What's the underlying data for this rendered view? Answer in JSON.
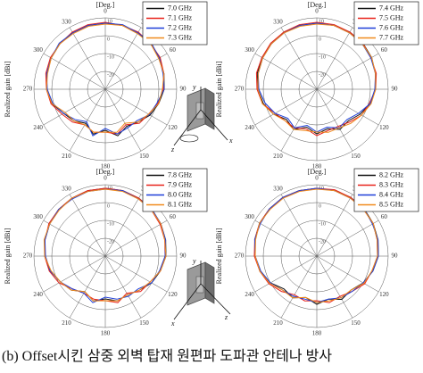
{
  "chart_data": [
    {
      "type": "polar",
      "theta_label": "[Deg.]",
      "r_label": "Realized gain [dBi]",
      "theta": [
        0,
        15,
        30,
        45,
        60,
        75,
        90,
        105,
        120,
        135,
        150,
        165,
        180,
        195,
        210,
        225,
        240,
        255,
        270,
        285,
        300,
        315,
        330,
        345
      ],
      "thetaticks": [
        0,
        30,
        60,
        90,
        120,
        150,
        180,
        210,
        240,
        270,
        300,
        330
      ],
      "rlim": [
        -30,
        10
      ],
      "rticks": [
        -20,
        -10,
        0,
        10
      ],
      "series": [
        {
          "name": "7.0 GHz",
          "color": "#111111",
          "values": [
            7,
            7,
            6.5,
            6,
            5,
            4,
            3,
            1,
            -1,
            -4,
            -6,
            -3,
            -7,
            -4,
            -8,
            -5,
            -3,
            1,
            3,
            4,
            5,
            6,
            6.5,
            7
          ]
        },
        {
          "name": "7.1 GHz",
          "color": "#e8231c",
          "values": [
            7.5,
            7,
            7,
            6,
            5.5,
            4,
            2.5,
            0.5,
            -2,
            -3,
            -7,
            -4,
            -6,
            -5,
            -7,
            -4,
            -2,
            1.5,
            3,
            4.5,
            5.5,
            6,
            7,
            7.5
          ]
        },
        {
          "name": "7.2 GHz",
          "color": "#1f3fd8",
          "values": [
            7,
            7.5,
            6.5,
            6.5,
            5,
            3.5,
            3,
            0,
            -1.5,
            -5,
            -5,
            -4,
            -8,
            -3,
            -9,
            -6,
            -3,
            0.5,
            2.5,
            4,
            5,
            6.5,
            6.5,
            7
          ]
        },
        {
          "name": "7.3 GHz",
          "color": "#f08a1c",
          "values": [
            6.5,
            7,
            6,
            6,
            4.5,
            4,
            2,
            1,
            -2,
            -4,
            -8,
            -5,
            -6,
            -5,
            -7,
            -5,
            -4,
            1,
            3,
            3.5,
            5,
            6,
            6,
            6.5
          ]
        }
      ]
    },
    {
      "type": "polar",
      "theta_label": "[Deg.]",
      "r_label": "Realized gain [dBi]",
      "theta": [
        0,
        15,
        30,
        45,
        60,
        75,
        90,
        105,
        120,
        135,
        150,
        165,
        180,
        195,
        210,
        225,
        240,
        255,
        270,
        285,
        300,
        315,
        330,
        345
      ],
      "thetaticks": [
        0,
        30,
        60,
        90,
        120,
        150,
        180,
        210,
        240,
        270,
        300,
        330
      ],
      "rlim": [
        -30,
        10
      ],
      "rticks": [
        -20,
        -10,
        0,
        10
      ],
      "series": [
        {
          "name": "7.4 GHz",
          "color": "#111111",
          "values": [
            7,
            7,
            7,
            6.5,
            5.5,
            4,
            3,
            1,
            -2,
            -5,
            -4,
            -7,
            -5,
            -8,
            -4,
            -6,
            -2,
            1,
            3,
            4.5,
            5.5,
            6,
            7,
            7
          ]
        },
        {
          "name": "7.5 GHz",
          "color": "#e8231c",
          "values": [
            7.5,
            7.5,
            7,
            6.5,
            5,
            4.5,
            3,
            0.5,
            -1,
            -4,
            -6,
            -6,
            -4,
            -7,
            -5,
            -5,
            -3,
            1.5,
            3.5,
            5,
            5.5,
            6.5,
            7,
            7.5
          ]
        },
        {
          "name": "7.6 GHz",
          "color": "#1f3fd8",
          "values": [
            7,
            7,
            6.5,
            6,
            5,
            4,
            2.5,
            1,
            -3,
            -6,
            -5,
            -8,
            -6,
            -9,
            -5,
            -7,
            -3,
            0,
            2.5,
            4,
            5,
            6,
            6.5,
            7
          ]
        },
        {
          "name": "7.7 GHz",
          "color": "#f08a1c",
          "values": [
            6.5,
            7,
            6.5,
            6,
            5.5,
            4,
            3,
            1.5,
            -1,
            -3,
            -5,
            -5,
            -6,
            -6,
            -4,
            -5,
            -2,
            1.5,
            3,
            4,
            5,
            6,
            6.5,
            6.5
          ]
        }
      ]
    },
    {
      "type": "polar",
      "theta_label": "[Deg.]",
      "r_label": "Realized gain [dBi]",
      "theta": [
        0,
        15,
        30,
        45,
        60,
        75,
        90,
        105,
        120,
        135,
        150,
        165,
        180,
        195,
        210,
        225,
        240,
        255,
        270,
        285,
        300,
        315,
        330,
        345
      ],
      "thetaticks": [
        0,
        30,
        60,
        90,
        120,
        150,
        180,
        210,
        240,
        270,
        300,
        330
      ],
      "rlim": [
        -30,
        10
      ],
      "rticks": [
        -20,
        -10,
        0,
        10
      ],
      "series": [
        {
          "name": "7.8 GHz",
          "color": "#111111",
          "values": [
            8,
            8,
            7.5,
            7,
            6,
            5,
            4,
            2,
            0,
            -3,
            -5,
            -4,
            -6,
            -4,
            -7,
            -3,
            -1,
            2,
            4,
            5,
            6,
            7,
            7.5,
            8
          ]
        },
        {
          "name": "7.9 GHz",
          "color": "#e8231c",
          "values": [
            8,
            8,
            7.5,
            6.5,
            5.5,
            4.5,
            3.5,
            2,
            -1,
            -2,
            -6,
            -3,
            -5,
            -5,
            -6,
            -4,
            0,
            2.5,
            4,
            5,
            6.5,
            7,
            7.5,
            8
          ]
        },
        {
          "name": "8.0 GHz",
          "color": "#1f3fd8",
          "values": [
            7.5,
            8,
            7,
            7,
            6,
            5,
            3.5,
            1.5,
            0,
            -4,
            -4,
            -5,
            -7,
            -3,
            -6,
            -4,
            -1,
            2,
            3.5,
            5,
            6,
            7,
            7,
            7.5
          ]
        },
        {
          "name": "8.1 GHz",
          "color": "#f08a1c",
          "values": [
            7.5,
            7.5,
            7,
            6.5,
            6,
            4.5,
            4,
            2,
            -1,
            -3,
            -5,
            -4,
            -5,
            -4,
            -7,
            -3,
            -1,
            1.5,
            4,
            5.5,
            6,
            6.5,
            7.5,
            7.5
          ]
        }
      ]
    },
    {
      "type": "polar",
      "theta_label": "[Deg.]",
      "r_label": "Realized gain [dBi]",
      "theta": [
        0,
        15,
        30,
        45,
        60,
        75,
        90,
        105,
        120,
        135,
        150,
        165,
        180,
        195,
        210,
        225,
        240,
        255,
        270,
        285,
        300,
        315,
        330,
        345
      ],
      "thetaticks": [
        0,
        30,
        60,
        90,
        120,
        150,
        180,
        210,
        240,
        270,
        300,
        330
      ],
      "rlim": [
        -30,
        10
      ],
      "rticks": [
        -20,
        -10,
        0,
        10
      ],
      "series": [
        {
          "name": "8.2 GHz",
          "color": "#111111",
          "values": [
            8,
            8,
            8,
            7.5,
            6.5,
            5.5,
            4.5,
            2.5,
            0,
            -3,
            -2,
            -5,
            -3,
            -6,
            -3,
            -4,
            0,
            3,
            4.5,
            6,
            7,
            7.5,
            8,
            8
          ]
        },
        {
          "name": "8.3 GHz",
          "color": "#e8231c",
          "values": [
            8,
            8.5,
            8,
            7,
            6.5,
            5,
            4,
            2,
            1,
            -2,
            -4,
            -3,
            -5,
            -4,
            -5,
            -2,
            1,
            3,
            5,
            6,
            7,
            7.5,
            8,
            8
          ]
        },
        {
          "name": "8.4 GHz",
          "color": "#1f3fd8",
          "values": [
            8,
            8,
            7.5,
            7.5,
            6,
            5.5,
            4.5,
            2.5,
            0,
            -2,
            -3,
            -5,
            -4,
            -5,
            -4,
            -3,
            0,
            2.5,
            4.5,
            6,
            6.5,
            7.5,
            8,
            8
          ]
        },
        {
          "name": "8.5 GHz",
          "color": "#f08a1c",
          "values": [
            7.5,
            8,
            7.5,
            7,
            6.5,
            5,
            4,
            2,
            0.5,
            -3,
            -3,
            -4,
            -4,
            -6,
            -3,
            -3,
            0.5,
            3,
            4.5,
            5.5,
            7,
            7,
            7.5,
            7.5
          ]
        }
      ]
    }
  ],
  "antenna_axes": [
    "x",
    "y",
    "z"
  ],
  "caption": "(b) Offset시킨 삼중 외벽 탑재 원편파 도파관 안테나 방사"
}
